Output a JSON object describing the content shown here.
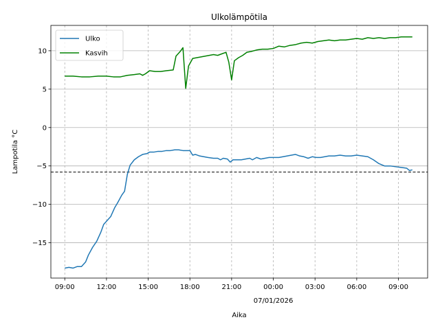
{
  "chart_data": {
    "type": "line",
    "title": "Ulkolämpötila",
    "xlabel": "Aika",
    "ylabel": "Lampotila °C",
    "x_tick_labels": [
      "09:00",
      "12:00",
      "15:00",
      "18:00",
      "21:00",
      "00:00",
      "03:00",
      "06:00",
      "09:00"
    ],
    "x_tick_hours": [
      0,
      3,
      6,
      9,
      12,
      15,
      18,
      21,
      24
    ],
    "x_date_label": "07/01/2026",
    "x_date_under_tick": 5,
    "xlim_hours": [
      -1,
      26.1
    ],
    "y_ticks": [
      10,
      5,
      0,
      -5,
      -10,
      -15
    ],
    "y_tick_labels": [
      "10",
      "5",
      "0",
      "−5",
      "−10",
      "−15"
    ],
    "ylim": [
      -19.6,
      13.3
    ],
    "grid": "on",
    "x_grid_style": "dashed",
    "reference_line": {
      "y": -5.8,
      "style": "dashed",
      "color": "#000000"
    },
    "legend_position": "upper-left",
    "series": [
      {
        "name": "Ulko",
        "color": "#1f77b4",
        "points": [
          [
            0,
            -18.3
          ],
          [
            0.3,
            -18.2
          ],
          [
            0.6,
            -18.3
          ],
          [
            0.9,
            -18.1
          ],
          [
            1.2,
            -18.1
          ],
          [
            1.5,
            -17.5
          ],
          [
            1.7,
            -16.6
          ],
          [
            2.0,
            -15.6
          ],
          [
            2.3,
            -14.8
          ],
          [
            2.6,
            -13.6
          ],
          [
            2.8,
            -12.6
          ],
          [
            3.1,
            -12.0
          ],
          [
            3.3,
            -11.6
          ],
          [
            3.6,
            -10.4
          ],
          [
            3.8,
            -9.8
          ],
          [
            4.1,
            -8.8
          ],
          [
            4.3,
            -8.3
          ],
          [
            4.5,
            -6.1
          ],
          [
            4.7,
            -4.9
          ],
          [
            5.0,
            -4.2
          ],
          [
            5.3,
            -3.8
          ],
          [
            5.6,
            -3.5
          ],
          [
            5.9,
            -3.4
          ],
          [
            6.1,
            -3.2
          ],
          [
            6.4,
            -3.2
          ],
          [
            6.7,
            -3.1
          ],
          [
            7.0,
            -3.1
          ],
          [
            7.3,
            -3.0
          ],
          [
            7.6,
            -3.0
          ],
          [
            7.9,
            -2.9
          ],
          [
            8.2,
            -2.9
          ],
          [
            8.5,
            -3.0
          ],
          [
            8.7,
            -3.0
          ],
          [
            9.0,
            -3.0
          ],
          [
            9.2,
            -3.6
          ],
          [
            9.4,
            -3.5
          ],
          [
            9.7,
            -3.7
          ],
          [
            10.0,
            -3.8
          ],
          [
            10.3,
            -3.9
          ],
          [
            10.7,
            -4.0
          ],
          [
            11.0,
            -4.0
          ],
          [
            11.2,
            -4.2
          ],
          [
            11.4,
            -4.0
          ],
          [
            11.7,
            -4.1
          ],
          [
            11.9,
            -4.5
          ],
          [
            12.1,
            -4.2
          ],
          [
            12.4,
            -4.2
          ],
          [
            12.7,
            -4.2
          ],
          [
            13.0,
            -4.1
          ],
          [
            13.3,
            -4.0
          ],
          [
            13.5,
            -4.2
          ],
          [
            13.8,
            -3.9
          ],
          [
            14.1,
            -4.1
          ],
          [
            14.4,
            -4.0
          ],
          [
            14.7,
            -3.9
          ],
          [
            15.0,
            -3.9
          ],
          [
            15.4,
            -3.9
          ],
          [
            15.7,
            -3.8
          ],
          [
            16.0,
            -3.7
          ],
          [
            16.3,
            -3.6
          ],
          [
            16.6,
            -3.5
          ],
          [
            16.9,
            -3.7
          ],
          [
            17.2,
            -3.8
          ],
          [
            17.5,
            -4.0
          ],
          [
            17.8,
            -3.8
          ],
          [
            18.1,
            -3.9
          ],
          [
            18.4,
            -3.9
          ],
          [
            18.7,
            -3.8
          ],
          [
            19.0,
            -3.7
          ],
          [
            19.4,
            -3.7
          ],
          [
            19.8,
            -3.6
          ],
          [
            20.2,
            -3.7
          ],
          [
            20.6,
            -3.7
          ],
          [
            21.0,
            -3.6
          ],
          [
            21.4,
            -3.7
          ],
          [
            21.8,
            -3.8
          ],
          [
            22.2,
            -4.2
          ],
          [
            22.6,
            -4.7
          ],
          [
            23.0,
            -5.0
          ],
          [
            23.4,
            -5.0
          ],
          [
            23.8,
            -5.1
          ],
          [
            24.2,
            -5.2
          ],
          [
            24.6,
            -5.3
          ],
          [
            24.8,
            -5.6
          ],
          [
            25.0,
            -5.5
          ]
        ]
      },
      {
        "name": "Kasvih",
        "color": "#008000",
        "points": [
          [
            0,
            6.7
          ],
          [
            0.6,
            6.7
          ],
          [
            1.2,
            6.6
          ],
          [
            1.8,
            6.6
          ],
          [
            2.4,
            6.7
          ],
          [
            3.0,
            6.7
          ],
          [
            3.5,
            6.6
          ],
          [
            4.0,
            6.6
          ],
          [
            4.5,
            6.8
          ],
          [
            5.0,
            6.9
          ],
          [
            5.4,
            7.0
          ],
          [
            5.6,
            6.8
          ],
          [
            5.8,
            7.0
          ],
          [
            6.1,
            7.4
          ],
          [
            6.5,
            7.3
          ],
          [
            6.9,
            7.3
          ],
          [
            7.3,
            7.4
          ],
          [
            7.8,
            7.5
          ],
          [
            8.0,
            9.3
          ],
          [
            8.3,
            9.9
          ],
          [
            8.5,
            10.4
          ],
          [
            8.7,
            5.1
          ],
          [
            8.9,
            8.0
          ],
          [
            9.2,
            9.0
          ],
          [
            9.5,
            9.1
          ],
          [
            9.8,
            9.2
          ],
          [
            10.1,
            9.3
          ],
          [
            10.4,
            9.4
          ],
          [
            10.7,
            9.5
          ],
          [
            11.0,
            9.4
          ],
          [
            11.3,
            9.6
          ],
          [
            11.6,
            9.8
          ],
          [
            11.8,
            8.5
          ],
          [
            12.0,
            6.2
          ],
          [
            12.2,
            8.7
          ],
          [
            12.5,
            9.1
          ],
          [
            12.8,
            9.4
          ],
          [
            13.1,
            9.8
          ],
          [
            13.4,
            9.9
          ],
          [
            13.8,
            10.1
          ],
          [
            14.2,
            10.2
          ],
          [
            14.6,
            10.2
          ],
          [
            15.0,
            10.3
          ],
          [
            15.4,
            10.6
          ],
          [
            15.8,
            10.5
          ],
          [
            16.2,
            10.7
          ],
          [
            16.6,
            10.8
          ],
          [
            17.0,
            11.0
          ],
          [
            17.4,
            11.1
          ],
          [
            17.8,
            11.0
          ],
          [
            18.2,
            11.2
          ],
          [
            18.6,
            11.3
          ],
          [
            19.0,
            11.4
          ],
          [
            19.4,
            11.3
          ],
          [
            19.8,
            11.4
          ],
          [
            20.2,
            11.4
          ],
          [
            20.6,
            11.5
          ],
          [
            21.0,
            11.6
          ],
          [
            21.4,
            11.5
          ],
          [
            21.8,
            11.7
          ],
          [
            22.2,
            11.6
          ],
          [
            22.6,
            11.7
          ],
          [
            23.0,
            11.6
          ],
          [
            23.4,
            11.7
          ],
          [
            23.8,
            11.7
          ],
          [
            24.2,
            11.8
          ],
          [
            24.6,
            11.8
          ],
          [
            25.0,
            11.8
          ]
        ]
      }
    ]
  }
}
